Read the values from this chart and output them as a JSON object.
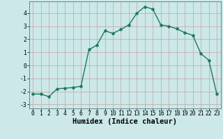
{
  "x": [
    0,
    1,
    2,
    3,
    4,
    5,
    6,
    7,
    8,
    9,
    10,
    11,
    12,
    13,
    14,
    15,
    16,
    17,
    18,
    19,
    20,
    21,
    22,
    23
  ],
  "y": [
    -2.2,
    -2.2,
    -2.4,
    -1.8,
    -1.75,
    -1.7,
    -1.6,
    1.2,
    1.55,
    2.65,
    2.45,
    2.75,
    3.1,
    4.0,
    4.5,
    4.3,
    3.1,
    3.0,
    2.8,
    2.5,
    2.3,
    0.9,
    0.4,
    -2.2
  ],
  "line_color": "#1a7a5e",
  "marker": "o",
  "markersize": 2.2,
  "linewidth": 1.0,
  "xlabel": "Humidex (Indice chaleur)",
  "xlim": [
    -0.5,
    23.5
  ],
  "ylim": [
    -3.3,
    4.9
  ],
  "yticks": [
    -3,
    -2,
    -1,
    0,
    1,
    2,
    3,
    4
  ],
  "xticks": [
    0,
    1,
    2,
    3,
    4,
    5,
    6,
    7,
    8,
    9,
    10,
    11,
    12,
    13,
    14,
    15,
    16,
    17,
    18,
    19,
    20,
    21,
    22,
    23
  ],
  "bg_color": "#cce8e8",
  "grid_color": "#c8a0a0",
  "tick_labelsize": 5.8,
  "xlabel_fontsize": 7.5
}
